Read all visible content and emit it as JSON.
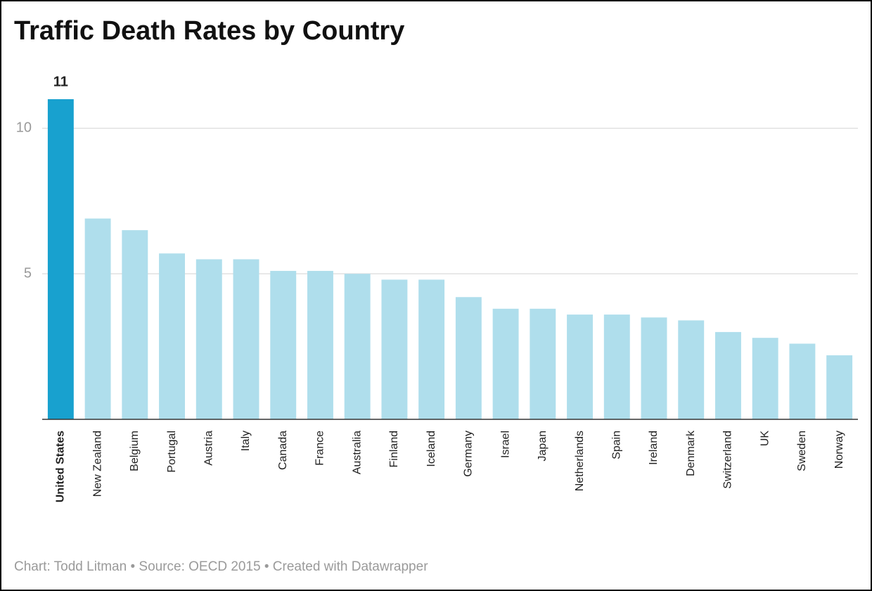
{
  "chart_data": {
    "type": "bar",
    "title": "Traffic Death Rates by Country",
    "footer": "Chart: Todd Litman • Source: OECD 2015 • Created with Datawrapper",
    "categories": [
      "United States",
      "New Zealand",
      "Belgium",
      "Portugal",
      "Austria",
      "Italy",
      "Canada",
      "France",
      "Australia",
      "Finland",
      "Iceland",
      "Germany",
      "Israel",
      "Japan",
      "Netherlands",
      "Spain",
      "Ireland",
      "Denmark",
      "Switzerland",
      "UK",
      "Sweden",
      "Norway"
    ],
    "values": [
      11,
      6.9,
      6.5,
      5.7,
      5.5,
      5.5,
      5.1,
      5.1,
      5.0,
      4.8,
      4.8,
      4.2,
      3.8,
      3.8,
      3.6,
      3.6,
      3.5,
      3.4,
      3.0,
      2.8,
      2.6,
      2.2
    ],
    "color": "#afdeec",
    "highlight": "United States",
    "highlight_color": "#18a1cf",
    "ylim": [
      0,
      11
    ],
    "yticks": [
      5,
      10
    ],
    "grid": true
  }
}
